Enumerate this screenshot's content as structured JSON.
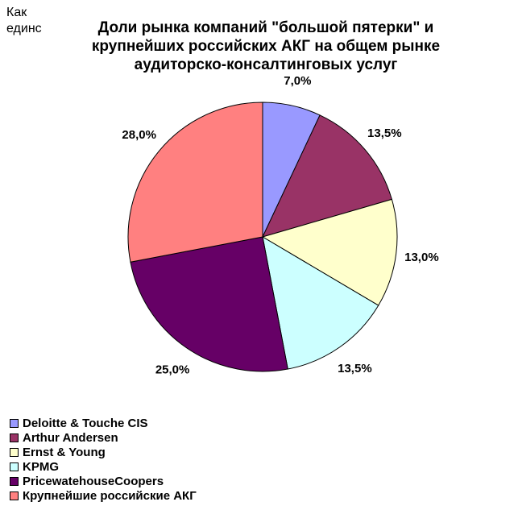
{
  "side_note": {
    "lines": [
      "Как",
      "единс"
    ]
  },
  "chart_data": {
    "type": "pie",
    "title": "Доли рынка компаний \"большой пятерки\" и крупнейших российских АКГ на общем рынке аудиторско-консалтинговых услуг",
    "title_lines": [
      "Доли рынка компаний \"большой пятерки\" и",
      "крупнейших российских АКГ на общем рынке",
      "аудиторско-консалтинговых услуг"
    ],
    "legend_position": "bottom-left",
    "slices": [
      {
        "name": "Deloitte & Touche CIS",
        "value": 7.0,
        "label": "7,0%",
        "color": "#9999FF"
      },
      {
        "name": "Arthur Andersen",
        "value": 13.5,
        "label": "13,5%",
        "color": "#993366"
      },
      {
        "name": "Ernst & Young",
        "value": 13.0,
        "label": "13,0%",
        "color": "#FFFFCC"
      },
      {
        "name": "KPMG",
        "value": 13.5,
        "label": "13,5%",
        "color": "#CCFFFF"
      },
      {
        "name": "PricewatehouseCoopers",
        "value": 25.0,
        "label": "25,0%",
        "color": "#660066"
      },
      {
        "name": "Крупнейшие российские АКГ",
        "value": 28.0,
        "label": "28,0%",
        "color": "#FF8080"
      }
    ]
  }
}
